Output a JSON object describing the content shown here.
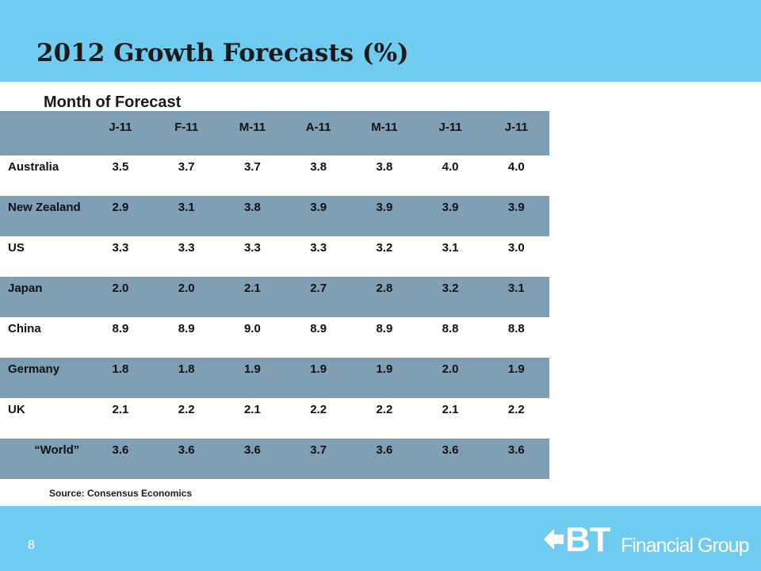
{
  "colors": {
    "header_band": "#6fcbf0",
    "table_band": "#7f9fb5",
    "text": "#111111",
    "logo": "#ffffff"
  },
  "slide": {
    "title": "2012 Growth Forecasts (%)",
    "subtitle": "Month of Forecast",
    "source": "Source: Consensus Economics",
    "page_number": "8"
  },
  "table": {
    "corner": "",
    "columns": [
      "J-11",
      "F-11",
      "M-11",
      "A-11",
      "M-11",
      "J-11",
      "J-11"
    ],
    "rows": [
      {
        "country": "Australia",
        "values": [
          "3.5",
          "3.7",
          "3.7",
          "3.8",
          "3.8",
          "4.0",
          "4.0"
        ]
      },
      {
        "country": "New Zealand",
        "values": [
          "2.9",
          "3.1",
          "3.8",
          "3.9",
          "3.9",
          "3.9",
          "3.9"
        ]
      },
      {
        "country": "US",
        "values": [
          "3.3",
          "3.3",
          "3.3",
          "3.3",
          "3.2",
          "3.1",
          "3.0"
        ]
      },
      {
        "country": "Japan",
        "values": [
          "2.0",
          "2.0",
          "2.1",
          "2.7",
          "2.8",
          "3.2",
          "3.1"
        ]
      },
      {
        "country": "China",
        "values": [
          "8.9",
          "8.9",
          "9.0",
          "8.9",
          "8.9",
          "8.8",
          "8.8"
        ]
      },
      {
        "country": "Germany",
        "values": [
          "1.8",
          "1.8",
          "1.9",
          "1.9",
          "1.9",
          "2.0",
          "1.9"
        ]
      },
      {
        "country": "UK",
        "values": [
          "2.1",
          "2.2",
          "2.1",
          "2.2",
          "2.2",
          "2.1",
          "2.2"
        ]
      },
      {
        "country": "“World”",
        "values": [
          "3.6",
          "3.6",
          "3.6",
          "3.7",
          "3.6",
          "3.6",
          "3.6"
        ]
      }
    ]
  },
  "logo": {
    "icon": "bt-diamond-arrow-icon",
    "mark": "BT",
    "text": "Financial Group"
  }
}
